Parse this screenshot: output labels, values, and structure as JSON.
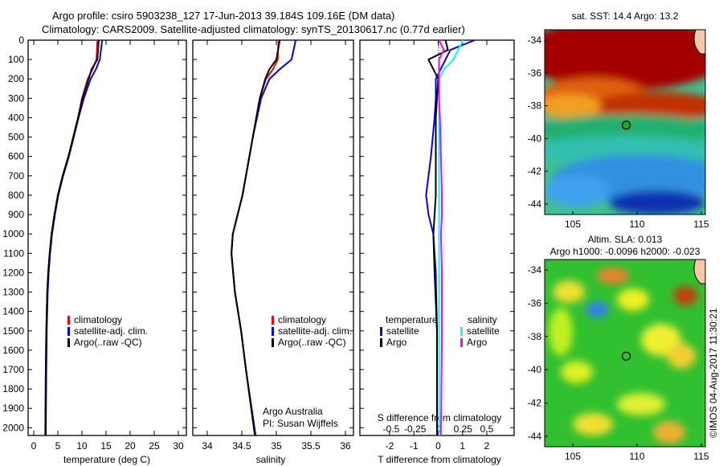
{
  "title_line1": "Argo profile: csiro 5903238_127 17-Jun-2013 39.184S 109.16E (DM data)",
  "title_line2": "Climatology: CARS2009. Satellite-adjusted climatology: synTS_20130617.nc (0.77d earlier)",
  "credit": "Argo Australia",
  "pi": "PI: Susan Wijffels",
  "stamp": "©IMOS 04-Aug-2017 11:30:21",
  "colors": {
    "climatology": "#ff0000",
    "satellite": "#0000ff",
    "argo": "#000000",
    "s_sat": "#00ffff",
    "s_argo": "#ff00ff"
  },
  "chart_data": [
    {
      "type": "line",
      "xlabel": "temperature (deg C)",
      "xlim": [
        -1.5,
        31.5
      ],
      "ylim": [
        2040,
        0
      ],
      "xticks": [
        "0",
        "5",
        "10",
        "15",
        "20",
        "25",
        "30"
      ],
      "yticks": [
        "0",
        "100",
        "200",
        "300",
        "400",
        "500",
        "600",
        "700",
        "800",
        "900",
        "1000",
        "1100",
        "1200",
        "1300",
        "1400",
        "1500",
        "1600",
        "1700",
        "1800",
        "1900",
        "2000"
      ],
      "legend": [
        "climatology",
        "satellite-adj. clim.",
        "Argo(..raw -QC)"
      ],
      "depth": [
        0,
        100,
        150,
        200,
        300,
        400,
        500,
        600,
        700,
        800,
        900,
        1000,
        1100,
        1200,
        1300,
        1500,
        1700,
        2040
      ],
      "series": [
        {
          "name": "climatology",
          "values": [
            13.2,
            13.0,
            12.2,
            11.2,
            10.0,
            9.2,
            8.2,
            7.2,
            6.0,
            5.0,
            4.3,
            3.7,
            3.3,
            3.0,
            2.8,
            2.6,
            2.5,
            2.4
          ]
        },
        {
          "name": "satellite-adj. clim.",
          "values": [
            14.2,
            13.7,
            12.9,
            11.8,
            10.4,
            9.3,
            8.3,
            7.3,
            6.1,
            5.1,
            4.4,
            3.8,
            3.4,
            3.1,
            2.9,
            2.7,
            2.6,
            2.5
          ]
        },
        {
          "name": "Argo",
          "values": [
            13.5,
            13.2,
            12.0,
            11.4,
            10.1,
            9.2,
            8.2,
            7.2,
            6.0,
            5.0,
            4.3,
            3.7,
            3.3,
            3.0,
            2.8,
            2.6,
            2.5,
            2.4
          ]
        }
      ]
    },
    {
      "type": "line",
      "xlabel": "salinity",
      "xlim": [
        33.8,
        36.1
      ],
      "ylim": [
        2040,
        0
      ],
      "xticks": [
        "34",
        "34.5",
        "35",
        "35.5",
        "36"
      ],
      "legend": [
        "climatology",
        "satellite-adj. clim.",
        "Argo(..raw -QC)"
      ],
      "depth": [
        0,
        100,
        150,
        200,
        300,
        500,
        800,
        1000,
        1100,
        1300,
        1500,
        1700,
        2040
      ],
      "series": [
        {
          "name": "climatology",
          "values": [
            35.03,
            35.02,
            34.95,
            34.85,
            34.76,
            34.66,
            34.51,
            34.37,
            34.35,
            34.4,
            34.49,
            34.56,
            34.69
          ]
        },
        {
          "name": "satellite-adj. clim.",
          "values": [
            35.28,
            35.22,
            35.05,
            34.9,
            34.78,
            34.66,
            34.51,
            34.37,
            34.35,
            34.4,
            34.49,
            34.56,
            34.7
          ]
        },
        {
          "name": "Argo",
          "values": [
            35.05,
            35.0,
            34.9,
            34.84,
            34.76,
            34.66,
            34.51,
            34.37,
            34.35,
            34.4,
            34.49,
            34.56,
            34.69
          ]
        }
      ]
    },
    {
      "type": "line",
      "xlabel": "T difference from climatology",
      "x2label": "S difference from climatology",
      "xlim": [
        -3.2,
        3.15
      ],
      "x2lim": [
        -0.8,
        0.78
      ],
      "ylim": [
        2040,
        0
      ],
      "xticks": [
        "-2",
        "-1",
        "0",
        "1",
        "2"
      ],
      "x2ticks": [
        "-0.5",
        "-0.25",
        "0",
        "0.25",
        "0.5"
      ],
      "legend_t_title": "temperature",
      "legend_s_title": "salinity",
      "legend": [
        "satellite",
        "Argo",
        "satellite",
        "Argo"
      ],
      "depth": [
        0,
        50,
        100,
        150,
        200,
        300,
        400,
        600,
        800,
        900,
        1000,
        1200,
        1500,
        2040
      ],
      "series": [
        {
          "name": "T satellite",
          "values": [
            1.5,
            0.5,
            0.3,
            0.1,
            -0.1,
            -0.1,
            -0.15,
            -0.3,
            -0.5,
            -0.4,
            -0.2,
            -0.1,
            -0.05,
            -0.05
          ]
        },
        {
          "name": "T Argo",
          "values": [
            0.3,
            0.4,
            -0.4,
            -0.2,
            0.0,
            -0.05,
            -0.1,
            -0.1,
            -0.1,
            -0.15,
            -0.2,
            -0.15,
            -0.05,
            -0.05
          ]
        },
        {
          "name": "S satellite",
          "values": [
            0.25,
            0.2,
            0.15,
            0.05,
            0.0,
            0.0,
            0.0,
            0.0,
            0.0,
            0.0,
            0.0,
            0.0,
            0.0,
            0.0
          ]
        },
        {
          "name": "S Argo",
          "values": [
            0.0,
            0.05,
            0.0,
            0.0,
            0.0,
            0.0,
            0.01,
            0.02,
            0.03,
            0.03,
            0.02,
            0.03,
            0.03,
            0.02
          ]
        }
      ]
    },
    {
      "type": "heatmap",
      "title": "sat. SST: 14.4 Argo: 13.2",
      "xticks": [
        "105",
        "110",
        "115"
      ],
      "yticks": [
        "-34",
        "-36",
        "-38",
        "-40",
        "-42",
        "-44"
      ],
      "marker": [
        109.16,
        -39.184
      ]
    },
    {
      "type": "heatmap",
      "title1": "Altim. SLA: 0.013",
      "title2": "Argo h1000: -0.0096 h2000: -0.023",
      "xticks": [
        "105",
        "110",
        "115"
      ],
      "yticks": [
        "-34",
        "-36",
        "-38",
        "-40",
        "-42",
        "-44"
      ],
      "marker": [
        109.16,
        -39.184
      ]
    }
  ]
}
